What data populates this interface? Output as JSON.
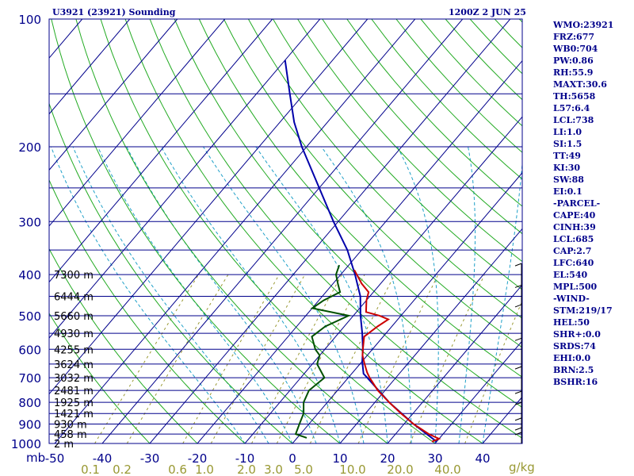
{
  "header": {
    "station": "U3921 (23921) Sounding",
    "datetime": "1200Z  2 JUN 25"
  },
  "indices": [
    "WMO:23921",
    "FRZ:677",
    "WB0:704",
    "PW:0.86",
    "RH:55.9",
    "MAXT:30.6",
    "TH:5658",
    "L57:6.4",
    "LCL:738",
    "LI:1.0",
    "SI:1.5",
    "TT:49",
    "KI:30",
    "SW:88",
    "EI:0.1",
    "-PARCEL-",
    "CAPE:40",
    "CINH:39",
    "LCL:685",
    "CAP:2.7",
    "LFC:640",
    "EL:540",
    "MPL:500",
    "-WIND-",
    "STM:219/17",
    "HEL:50",
    "SHR+:0.0",
    "SRDS:74",
    "EHI:0.0",
    "BRN:2.5",
    "BSHR:16"
  ],
  "colors": {
    "isobar": "#00008b",
    "isotherm": "#00008b",
    "dry_adiabat": "#22aa22",
    "moist_adiabat": "#1fa0c8",
    "mixing_ratio": "#999933",
    "environment_temp": "#cc0000",
    "dewpoint": "#005000",
    "parcel": "#0000aa",
    "text": "#00008b"
  },
  "chart_data": {
    "type": "skew-t",
    "pressure_unit_label": "mb",
    "pressure_levels": [
      1000,
      900,
      800,
      700,
      600,
      500,
      400,
      300,
      200,
      100
    ],
    "temperature_ticks": [
      -50,
      -40,
      -30,
      -20,
      -10,
      0,
      10,
      20,
      30,
      40
    ],
    "mixing_ratio_ticks": [
      "0.1",
      "0.2",
      "0.6",
      "1.0",
      "2.0",
      "3.0",
      "5.0",
      "10.0",
      "20.0",
      "40.0"
    ],
    "mixing_ratio_unit": "g/kg",
    "height_labels": [
      {
        "text": "7300 m",
        "p": 400
      },
      {
        "text": "6444 m",
        "p": 450
      },
      {
        "text": "5660 m",
        "p": 500
      },
      {
        "text": "4930 m",
        "p": 550
      },
      {
        "text": "4255 m",
        "p": 600
      },
      {
        "text": "3624 m",
        "p": 650
      },
      {
        "text": "3032 m",
        "p": 700
      },
      {
        "text": "2481 m",
        "p": 750
      },
      {
        "text": "1925 m",
        "p": 800
      },
      {
        "text": "1421 m",
        "p": 850
      },
      {
        "text": "930 m",
        "p": 900
      },
      {
        "text": "458 m",
        "p": 950
      },
      {
        "text": "2 m",
        "p": 1000
      }
    ],
    "temperature_profile": [
      {
        "p": 990,
        "t": 29
      },
      {
        "p": 975,
        "t": 30
      },
      {
        "p": 950,
        "t": 27
      },
      {
        "p": 900,
        "t": 22
      },
      {
        "p": 850,
        "t": 17.5
      },
      {
        "p": 800,
        "t": 13
      },
      {
        "p": 750,
        "t": 8.5
      },
      {
        "p": 700,
        "t": 4.5
      },
      {
        "p": 680,
        "t": 3
      },
      {
        "p": 650,
        "t": 1
      },
      {
        "p": 620,
        "t": -1
      },
      {
        "p": 600,
        "t": -2
      },
      {
        "p": 560,
        "t": -4
      },
      {
        "p": 530,
        "t": -3
      },
      {
        "p": 510,
        "t": -2
      },
      {
        "p": 500,
        "t": -4.5
      },
      {
        "p": 490,
        "t": -8
      },
      {
        "p": 460,
        "t": -10
      },
      {
        "p": 440,
        "t": -11
      },
      {
        "p": 420,
        "t": -14
      },
      {
        "p": 390,
        "t": -18
      }
    ],
    "dewpoint_profile": [
      {
        "p": 970,
        "t": 2
      },
      {
        "p": 950,
        "t": -1
      },
      {
        "p": 900,
        "t": -2
      },
      {
        "p": 850,
        "t": -3
      },
      {
        "p": 800,
        "t": -5
      },
      {
        "p": 750,
        "t": -6
      },
      {
        "p": 700,
        "t": -5
      },
      {
        "p": 650,
        "t": -9
      },
      {
        "p": 620,
        "t": -10
      },
      {
        "p": 600,
        "t": -12
      },
      {
        "p": 560,
        "t": -15
      },
      {
        "p": 530,
        "t": -14
      },
      {
        "p": 500,
        "t": -11
      },
      {
        "p": 480,
        "t": -20
      },
      {
        "p": 460,
        "t": -19
      },
      {
        "p": 440,
        "t": -17
      },
      {
        "p": 420,
        "t": -19
      },
      {
        "p": 400,
        "t": -21
      },
      {
        "p": 380,
        "t": -22
      }
    ],
    "parcel_profile": [
      {
        "p": 990,
        "t": 30
      },
      {
        "p": 900,
        "t": 22
      },
      {
        "p": 800,
        "t": 13
      },
      {
        "p": 700,
        "t": 4
      },
      {
        "p": 685,
        "t": 2.5
      },
      {
        "p": 640,
        "t": 0
      },
      {
        "p": 600,
        "t": -2
      },
      {
        "p": 550,
        "t": -5
      },
      {
        "p": 500,
        "t": -8.5
      },
      {
        "p": 450,
        "t": -12
      },
      {
        "p": 400,
        "t": -17
      },
      {
        "p": 350,
        "t": -23
      },
      {
        "p": 300,
        "t": -31
      },
      {
        "p": 250,
        "t": -40
      },
      {
        "p": 200,
        "t": -51
      },
      {
        "p": 175,
        "t": -57
      },
      {
        "p": 150,
        "t": -63
      },
      {
        "p": 125,
        "t": -70
      }
    ]
  }
}
